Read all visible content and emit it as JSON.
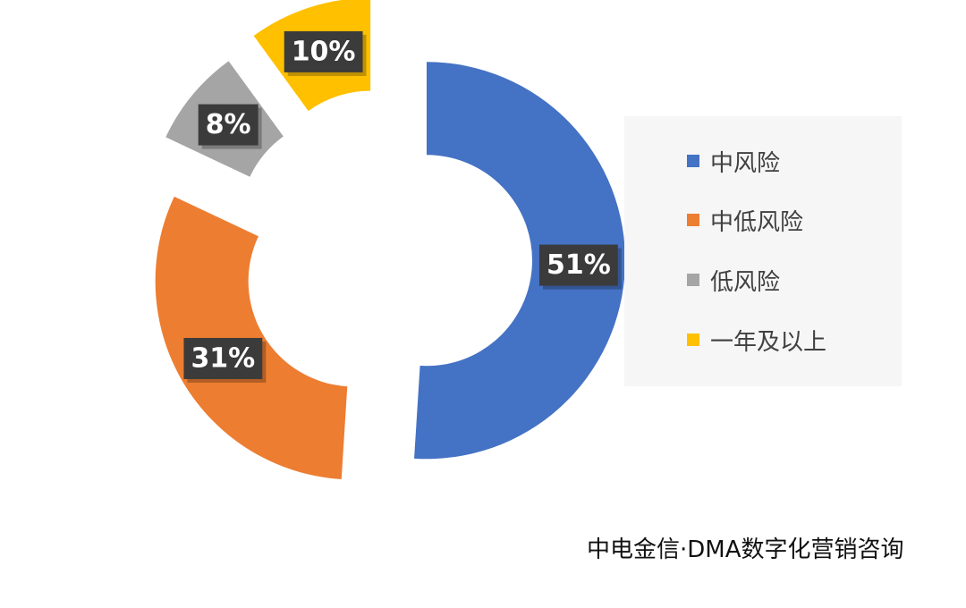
{
  "chart_data": {
    "type": "pie",
    "categories": [
      "中风险",
      "中低风险",
      "低风险",
      "一年及以上"
    ],
    "values": [
      51,
      31,
      8,
      10
    ],
    "labels": [
      "51%",
      "31%",
      "8%",
      "10%"
    ],
    "colors": [
      "#4472c4",
      "#ed7d31",
      "#a5a5a5",
      "#ffc000"
    ],
    "legend_position": "right"
  },
  "legend": {
    "items": [
      {
        "label": "中风险",
        "color": "#4472c4"
      },
      {
        "label": "中低风险",
        "color": "#ed7d31"
      },
      {
        "label": "低风险",
        "color": "#a5a5a5"
      },
      {
        "label": "一年及以上",
        "color": "#ffc000"
      }
    ]
  },
  "source": "中电金信·DMA数字化营销咨询"
}
